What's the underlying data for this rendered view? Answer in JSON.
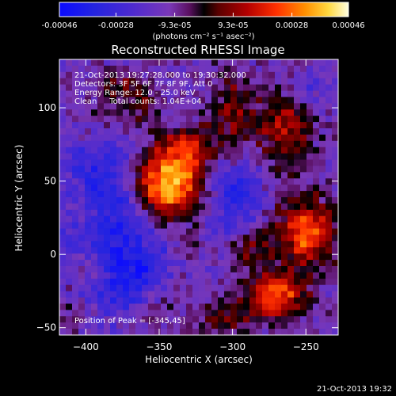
{
  "chart_data": {
    "type": "heatmap",
    "title": "Reconstructed RHESSI Image",
    "xlabel": "Heliocentric X (arcsec)",
    "ylabel": "Heliocentric Y (arcsec)",
    "xlim": [
      -418,
      -228
    ],
    "ylim": [
      -55,
      133
    ],
    "x_ticks": [
      -400,
      -350,
      -300,
      -250
    ],
    "y_ticks": [
      -50,
      0,
      50,
      100
    ],
    "colorbar": {
      "label": "(photons cm⁻² s⁻¹ asec⁻²)",
      "range": [
        -0.00046,
        0.00046
      ],
      "tick_labels": [
        "-0.00046",
        "-0.00028",
        "-9.3e-05",
        "9.3e-05",
        "0.00028",
        "0.00046"
      ],
      "tick_values": [
        -0.00046,
        -0.00028,
        -9.3e-05,
        9.3e-05,
        0.00028,
        0.00046
      ]
    },
    "annotations": [
      "21-Oct-2013 19:27:28.000 to 19:30:32.000",
      "Detectors: 3F 5F 6F 7F 8F 9F, Att 0",
      "Energy Range: 12.0 - 25.0 keV",
      "Clean     Total counts: 1.04E+04"
    ],
    "peak_label": "Position of Peak = [-345,45]",
    "peak": [
      -345,
      45
    ],
    "sources": [
      {
        "x": -345,
        "y": 48,
        "sx": 18,
        "sy": 16,
        "amp": 1.0
      },
      {
        "x": -330,
        "y": 72,
        "sx": 14,
        "sy": 10,
        "amp": 0.45
      },
      {
        "x": -300,
        "y": 95,
        "sx": 10,
        "sy": 22,
        "amp": 0.35
      },
      {
        "x": -265,
        "y": 88,
        "sx": 14,
        "sy": 22,
        "amp": 0.45
      },
      {
        "x": -250,
        "y": 15,
        "sx": 14,
        "sy": 16,
        "amp": 0.75
      },
      {
        "x": -290,
        "y": 5,
        "sx": 10,
        "sy": 12,
        "amp": 0.35
      },
      {
        "x": -270,
        "y": -28,
        "sx": 14,
        "sy": 12,
        "amp": 0.7
      },
      {
        "x": -305,
        "y": -42,
        "sx": 14,
        "sy": 10,
        "amp": 0.3
      },
      {
        "x": -365,
        "y": 100,
        "sx": 12,
        "sy": 14,
        "amp": 0.3
      },
      {
        "x": -392,
        "y": 92,
        "sx": 12,
        "sy": 12,
        "amp": 0.2
      },
      {
        "x": -400,
        "y": 30,
        "sx": 10,
        "sy": 10,
        "amp": 0.2
      },
      {
        "x": -395,
        "y": -10,
        "sx": 10,
        "sy": 10,
        "amp": 0.25
      },
      {
        "x": -355,
        "y": -40,
        "sx": 10,
        "sy": 8,
        "amp": 0.2
      },
      {
        "x": -345,
        "y": -25,
        "sx": 10,
        "sy": 8,
        "amp": 0.2
      },
      {
        "x": -410,
        "y": -40,
        "sx": 8,
        "sy": 10,
        "amp": 0.15
      },
      {
        "x": -330,
        "y": 5,
        "sx": 8,
        "sy": 8,
        "amp": 0.15
      },
      {
        "x": -380,
        "y": 115,
        "sx": 12,
        "sy": 8,
        "amp": 0.2
      }
    ],
    "negative_regions": [
      {
        "x": -385,
        "y": 40,
        "sx": 22,
        "sy": 35,
        "amp": 0.55
      },
      {
        "x": -370,
        "y": -15,
        "sx": 20,
        "sy": 18,
        "amp": 0.5
      },
      {
        "x": -300,
        "y": 40,
        "sx": 14,
        "sy": 22,
        "amp": 0.5
      },
      {
        "x": -250,
        "y": 115,
        "sx": 12,
        "sy": 10,
        "amp": 0.3
      }
    ]
  },
  "footer": {
    "timestamp": "21-Oct-2013 19:32"
  },
  "colors": {
    "background": "#000000",
    "text": "#ffffff"
  }
}
